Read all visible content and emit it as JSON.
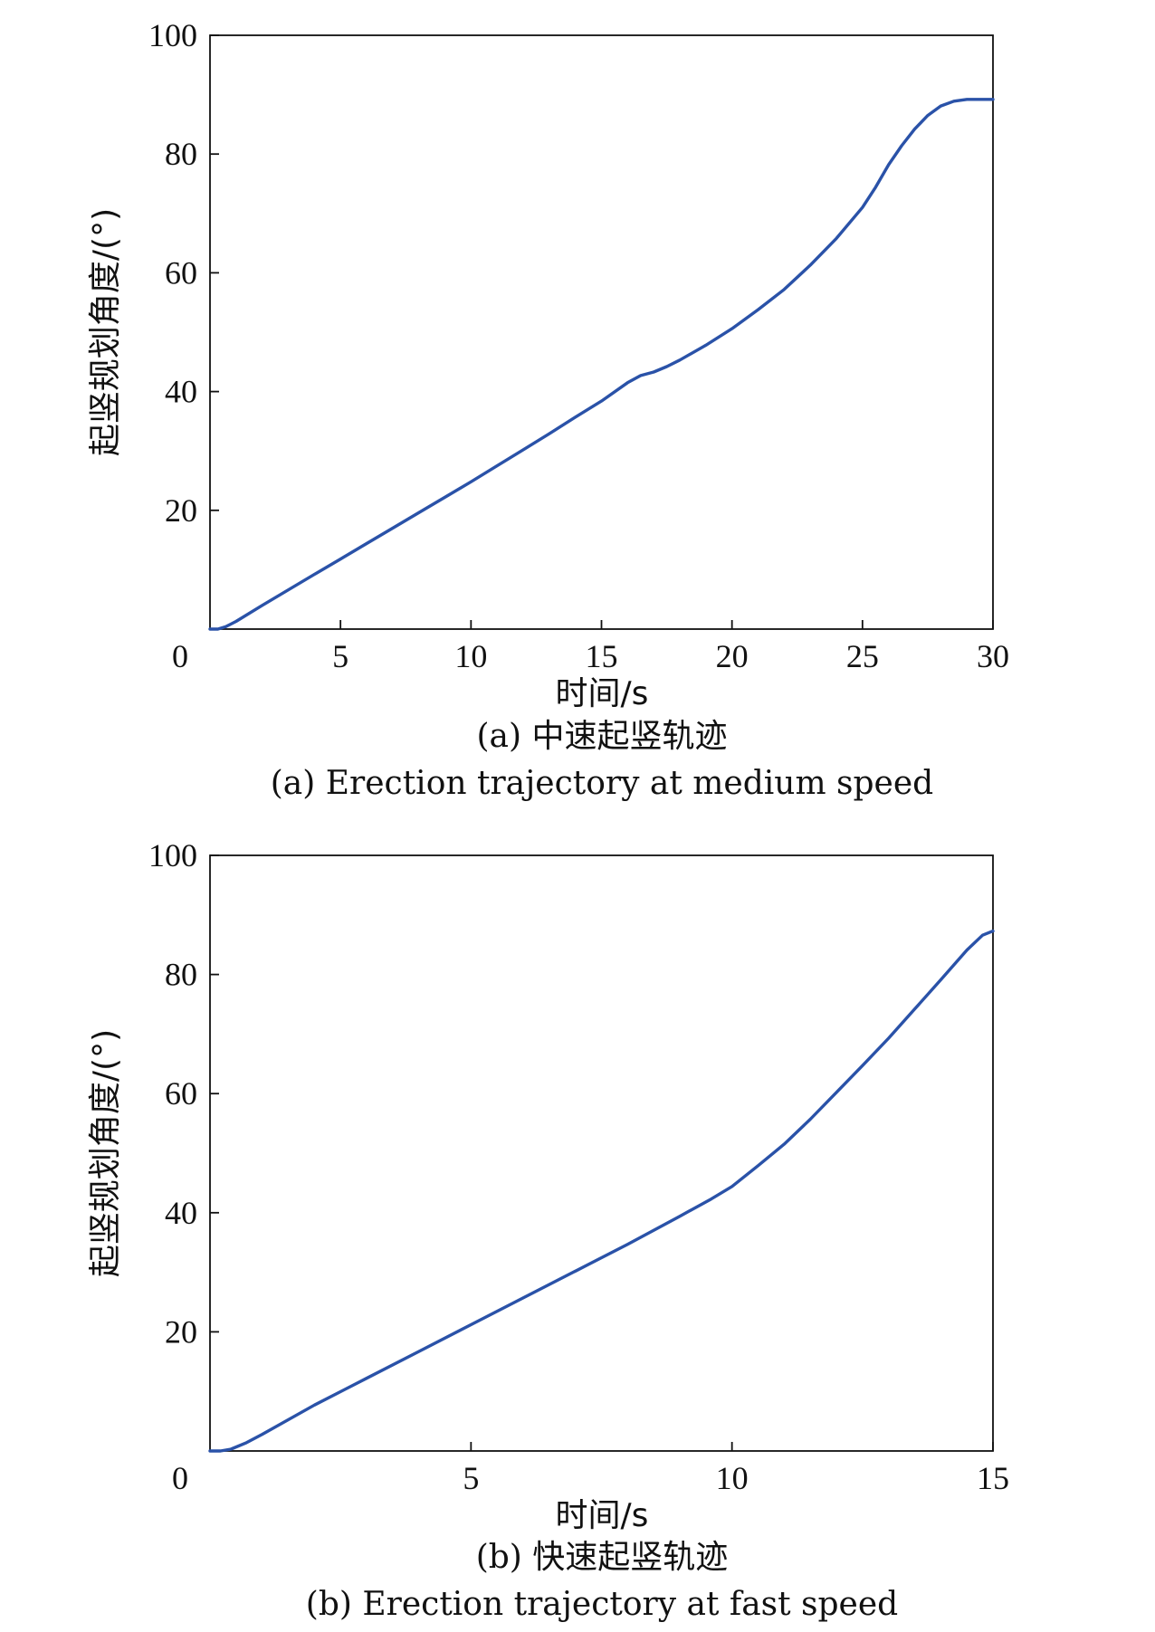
{
  "colors": {
    "line": "#2a52a8",
    "axes": "#111111",
    "text": "#111111"
  },
  "chart_data": [
    {
      "type": "line",
      "title": "",
      "caption_cn": "(a) 中速起竖轨迹",
      "caption_en": "(a) Erection trajectory at medium speed",
      "xlabel": "时间/s",
      "ylabel": "起竖规划角度/(°)",
      "xlim": [
        0,
        30
      ],
      "ylim": [
        0,
        100
      ],
      "xticks": [
        5,
        10,
        15,
        20,
        25,
        30
      ],
      "yticks": [
        20,
        40,
        60,
        80,
        100
      ],
      "origin_label": "0",
      "grid": false,
      "legend": "none",
      "series": [
        {
          "x": [
            0,
            0.3,
            0.6,
            1,
            2,
            3,
            4,
            5,
            6,
            7,
            8,
            9,
            10,
            11,
            12,
            13,
            14,
            15,
            16,
            16.5,
            17,
            17.5,
            18,
            19,
            20,
            21,
            22,
            23,
            24,
            25,
            25.5,
            26,
            26.5,
            27,
            27.5,
            28,
            28.5,
            29,
            30
          ],
          "y": [
            0,
            0,
            0.4,
            1.3,
            4,
            6.6,
            9.2,
            11.8,
            14.4,
            17,
            19.6,
            22.2,
            24.8,
            27.5,
            30.2,
            32.9,
            35.7,
            38.4,
            41.5,
            42.7,
            43.3,
            44.2,
            45.3,
            47.8,
            50.6,
            53.8,
            57.2,
            61.3,
            65.8,
            71,
            74.4,
            78.2,
            81.4,
            84.2,
            86.5,
            88.1,
            88.9,
            89.2,
            89.2
          ]
        }
      ]
    },
    {
      "type": "line",
      "title": "",
      "caption_cn": "(b) 快速起竖轨迹",
      "caption_en": "(b) Erection trajectory at fast speed",
      "xlabel": "时间/s",
      "ylabel": "起竖规划角度/(°)",
      "xlim": [
        0,
        15
      ],
      "ylim": [
        0,
        100
      ],
      "xticks": [
        5,
        10,
        15
      ],
      "yticks": [
        20,
        40,
        60,
        80,
        100
      ],
      "origin_label": "0",
      "grid": false,
      "legend": "none",
      "series": [
        {
          "x": [
            0,
            0.2,
            0.4,
            0.7,
            1,
            2,
            3,
            4,
            5,
            6,
            7,
            8,
            9,
            9.6,
            10,
            10.5,
            11,
            11.5,
            12,
            12.5,
            13,
            13.5,
            14,
            14.5,
            14.8,
            15
          ],
          "y": [
            0,
            0,
            0.3,
            1.4,
            2.8,
            7.7,
            12.2,
            16.7,
            21.2,
            25.7,
            30.2,
            34.7,
            39.4,
            42.3,
            44.4,
            47.9,
            51.5,
            55.7,
            60.2,
            64.7,
            69.3,
            74.2,
            79.1,
            84.1,
            86.6,
            87.3
          ]
        }
      ]
    }
  ]
}
